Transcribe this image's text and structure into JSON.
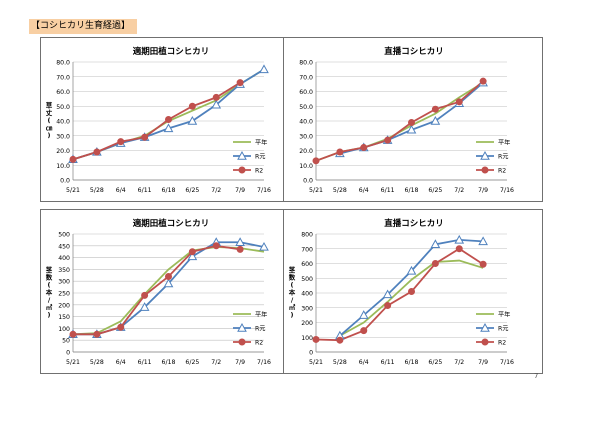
{
  "page_title": "【コシヒカリ生育経過】",
  "page_number": "7",
  "colors": {
    "heinen": "#9bbb59",
    "rgan": "#4f81bd",
    "r2": "#c0504d",
    "grid": "#bfbfbf"
  },
  "chart_data": [
    {
      "type": "line",
      "title": "適期田植コシヒカリ",
      "ylabel": "草丈(㎝)",
      "ylim": [
        0,
        80
      ],
      "yticks": [
        "0.0",
        "10.0",
        "20.0",
        "30.0",
        "40.0",
        "50.0",
        "60.0",
        "70.0",
        "80.0"
      ],
      "categories": [
        "5/21",
        "5/28",
        "6/4",
        "6/11",
        "6/18",
        "6/25",
        "7/2",
        "7/9",
        "7/16"
      ],
      "legend": "right",
      "series": [
        {
          "name": "平年",
          "values": [
            14,
            19,
            25,
            30,
            40,
            47,
            54,
            65,
            75
          ]
        },
        {
          "name": "R元",
          "values": [
            14,
            19,
            25,
            29,
            35,
            40,
            51,
            65,
            75
          ]
        },
        {
          "name": "R2",
          "values": [
            14,
            19,
            26,
            29,
            41,
            50,
            56,
            66,
            null
          ]
        }
      ]
    },
    {
      "type": "line",
      "title": "直播コシヒカリ",
      "ylabel": "",
      "ylim": [
        0,
        80
      ],
      "yticks": [
        "0.0",
        "10.0",
        "20.0",
        "30.0",
        "40.0",
        "50.0",
        "60.0",
        "70.0",
        "80.0"
      ],
      "categories": [
        "5/21",
        "5/28",
        "6/4",
        "6/11",
        "6/18",
        "6/25",
        "7/2",
        "7/9",
        "7/16"
      ],
      "legend": "right",
      "series": [
        {
          "name": "平年",
          "values": [
            13,
            19,
            22,
            28,
            37,
            45,
            56,
            66,
            null
          ]
        },
        {
          "name": "R元",
          "values": [
            null,
            18,
            22,
            27,
            34,
            40,
            52,
            66,
            null
          ]
        },
        {
          "name": "R2",
          "values": [
            13,
            19,
            22,
            27,
            39,
            48,
            53,
            67,
            null
          ]
        }
      ]
    },
    {
      "type": "line",
      "title": "適期田植コシヒカリ",
      "ylabel": "茎数(本/㎡)",
      "ylim": [
        0,
        500
      ],
      "yticks": [
        "0",
        "50",
        "100",
        "150",
        "200",
        "250",
        "300",
        "350",
        "400",
        "450",
        "500"
      ],
      "categories": [
        "5/21",
        "5/28",
        "6/4",
        "6/11",
        "6/18",
        "6/25",
        "7/2",
        "7/9",
        "7/16"
      ],
      "legend": "right",
      "series": [
        {
          "name": "平年",
          "values": [
            75,
            80,
            130,
            245,
            350,
            430,
            445,
            440,
            425
          ]
        },
        {
          "name": "R元",
          "values": [
            75,
            75,
            105,
            190,
            290,
            405,
            465,
            465,
            445
          ]
        },
        {
          "name": "R2",
          "values": [
            75,
            75,
            105,
            240,
            320,
            425,
            450,
            435,
            null
          ]
        }
      ]
    },
    {
      "type": "line",
      "title": "直播コシヒカリ",
      "ylabel": "茎数(本/㎡)",
      "ylim": [
        0,
        800
      ],
      "yticks": [
        "0",
        "100",
        "200",
        "300",
        "400",
        "500",
        "600",
        "700",
        "800"
      ],
      "categories": [
        "5/21",
        "5/28",
        "6/4",
        "6/11",
        "6/18",
        "6/25",
        "7/2",
        "7/9",
        "7/16"
      ],
      "legend": "right",
      "series": [
        {
          "name": "平年",
          "values": [
            null,
            110,
            200,
            340,
            490,
            610,
            620,
            570,
            null
          ]
        },
        {
          "name": "R元",
          "values": [
            null,
            110,
            250,
            390,
            550,
            730,
            760,
            750,
            null
          ]
        },
        {
          "name": "R2",
          "values": [
            85,
            80,
            145,
            315,
            410,
            600,
            700,
            595,
            null
          ]
        }
      ]
    }
  ]
}
